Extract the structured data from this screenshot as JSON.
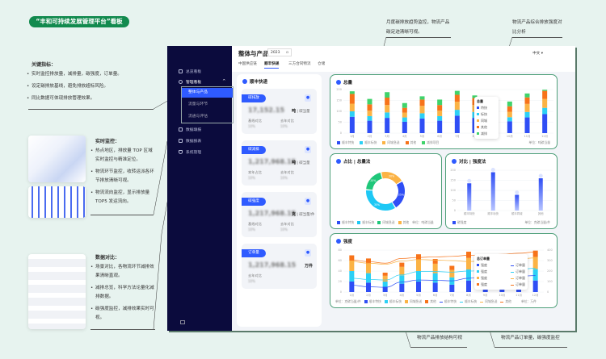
{
  "page_title": "“丰和可持续发展管理平台”看板",
  "notes": {
    "key": {
      "heading": "关键指标：",
      "items": [
        "实时监控排放量，减排量，碳强度，订单量。",
        "设定碳排放基线，避免排放超标风险。",
        "同比数据可体现排放管理效果。"
      ]
    },
    "realtime": {
      "heading": "实时监控：",
      "items": [
        "热点地区，排放量 TOP 区域实时监控与精准定位。",
        "物流环节监控，收转运派各环节排放清晰可视。",
        "物流流向监控，显示排放量 TOP5 发运流向。"
      ]
    },
    "compare": {
      "heading": "数据对比：",
      "items": [
        "场景对比，各物流环节减排效果清晰直观。",
        "减排总览，科学方法论量化减排数据。",
        "碳强度监控，减排效果实时可视。"
      ]
    },
    "top1": "月度碳排放趋势监控，物流产品碳足迹清晰可视。",
    "top2": "物流产品综合排放强度对比分析",
    "bottom1": "物流产品排放结构可视",
    "bottom2": "物流产品订单量，碳强度监控"
  },
  "sidebar": {
    "items": [
      "总览看板",
      "管理看板",
      "数据填报",
      "数据报表",
      "系统管理"
    ],
    "sub_items": [
      "整体与产品",
      "流量与环节",
      "流通与评估"
    ]
  },
  "header": {
    "title": "整体与产品",
    "year": "2023",
    "lang": "中文",
    "tabs": [
      "中国供应链",
      "顺丰快递",
      "三方合同物流",
      "仓储"
    ]
  },
  "kpi_panel": {
    "title": "顺丰快递",
    "cards": [
      {
        "tag": "碳排放",
        "value": "17,152.15",
        "unit": "吨",
        "unit_sub": "碳当量",
        "labels": [
          "基线对比",
          "去年对比"
        ],
        "pcts": [
          "10%",
          "10%"
        ]
      },
      {
        "tag": "碳减排",
        "value": "1,217,968.15",
        "unit": "吨",
        "unit_sub": "碳当量",
        "labels": [
          "本年占比",
          "去年对比"
        ],
        "pcts": [
          "10%",
          "10%"
        ]
      },
      {
        "tag": "碳强度",
        "value": "1,217,968.15",
        "unit": "克",
        "unit_sub": "碳当量/件",
        "labels": [
          "基线对比",
          "去年对比"
        ],
        "pcts": [
          "10%",
          "10%"
        ]
      },
      {
        "tag": "订单量",
        "value": "1,217,968.15",
        "unit": "万件",
        "unit_sub": "",
        "labels": [
          "去年对比"
        ],
        "pcts": [
          "10%"
        ]
      }
    ]
  },
  "colors": {
    "blue": "#2f4ef5",
    "cyan": "#2cd0f5",
    "yellow": "#fbb345",
    "orange": "#f7731a",
    "green": "#3fd36b",
    "accent": "#2f5bff",
    "sidebar": "#0b0b3d",
    "brand": "#128a4e"
  },
  "chart_data": [
    {
      "type": "bar",
      "stacked": true,
      "title": "总量",
      "categories": [
        "1月",
        "2月",
        "3月",
        "4月",
        "5月",
        "6月",
        "7月",
        "8月",
        "9月",
        "10月",
        "11月",
        "12月"
      ],
      "ylim": [
        0,
        200
      ],
      "yticks": [
        0,
        50,
        100,
        150,
        200
      ],
      "unit": "单位：吨碳当量",
      "legend": "bottom-left",
      "series": [
        {
          "name": "顺丰特快",
          "color": "#2f4ef5",
          "values": [
            75,
            57,
            70,
            52,
            67,
            57,
            80,
            70,
            60,
            54,
            72,
            87
          ]
        },
        {
          "name": "顺丰标快",
          "color": "#2cd0f5",
          "values": [
            25,
            21,
            25,
            20,
            24,
            21,
            27,
            27,
            22,
            19,
            25,
            29
          ]
        },
        {
          "name": "同城急送",
          "color": "#fbb345",
          "values": [
            35,
            25,
            34,
            22,
            34,
            25,
            37,
            32,
            28,
            25,
            37,
            41
          ]
        },
        {
          "name": "其他",
          "color": "#f7731a",
          "values": [
            45,
            29,
            34,
            22,
            29,
            26,
            32,
            32,
            28,
            25,
            30,
            37
          ]
        },
        {
          "name": "减排项目",
          "color": "#3fd36b",
          "values": [
            12,
            25,
            25,
            22,
            15,
            25,
            18,
            12,
            18,
            22,
            18,
            5
          ]
        }
      ]
    },
    {
      "type": "pie",
      "donut": true,
      "title": "占比 | 总量法",
      "unit": "单位：吨碳当量",
      "labels": [
        "顺丰特快",
        "顺丰标快",
        "同城急送",
        "其他"
      ],
      "values": [
        25,
        35,
        20,
        20
      ],
      "colors": [
        "#2f4ef5",
        "#1ec8f5",
        "#1fc77a",
        "#fbb345"
      ]
    },
    {
      "type": "bar",
      "title": "对比 | 强度法",
      "categories": [
        "顺丰特快",
        "顺丰标快",
        "顺丰同城",
        "其他"
      ],
      "values": [
        135,
        190,
        78,
        160
      ],
      "ylim": [
        0,
        200
      ],
      "yticks": [
        0,
        50,
        100,
        150,
        200
      ],
      "series_name": "碳强度",
      "unit": "单位：克碳当量/件"
    },
    {
      "type": "bar",
      "stacked": true,
      "title": "强度",
      "categories": [
        "1月",
        "2月",
        "3月",
        "4月",
        "5月",
        "6月",
        "7月",
        "8月",
        "9月",
        "10月",
        "11月",
        "12月"
      ],
      "ylim": [
        0,
        80
      ],
      "yticks": [
        0,
        20,
        40,
        60,
        80
      ],
      "y2lim": [
        0,
        400
      ],
      "y2ticks": [
        0,
        100,
        200,
        300,
        400
      ],
      "unit_left": "单位：克碳当量/件",
      "unit_right": "单位：万件",
      "series": [
        {
          "name": "顺丰特快",
          "color": "#2f4ef5",
          "values": [
            20,
            18,
            10,
            16,
            20,
            18,
            14,
            22,
            20,
            18,
            20,
            22
          ]
        },
        {
          "name": "顺丰标快",
          "color": "#2cd0f5",
          "values": [
            20,
            18,
            10,
            16,
            20,
            18,
            14,
            21,
            20,
            18,
            20,
            22
          ]
        },
        {
          "name": "同城急送",
          "color": "#fbb345",
          "values": [
            20,
            18,
            11,
            16,
            22,
            18,
            14,
            22,
            20,
            18,
            20,
            23
          ]
        },
        {
          "name": "其他",
          "color": "#f7731a",
          "values": [
            10,
            10,
            6,
            8,
            10,
            9,
            8,
            12,
            10,
            8,
            10,
            12
          ]
        }
      ],
      "lines": [
        {
          "name": "顺丰特快",
          "color": "#2f4ef5",
          "values": [
            65,
            50,
            45,
            95,
            115,
            112,
            107,
            132,
            140,
            145,
            150,
            157
          ]
        },
        {
          "name": "顺丰标快",
          "color": "#2cd0f5",
          "values": [
            132,
            120,
            115,
            165,
            195,
            195,
            190,
            200,
            205,
            210,
            215,
            227
          ]
        },
        {
          "name": "同城急送",
          "color": "#fbb345",
          "values": [
            290,
            275,
            265,
            295,
            310,
            305,
            300,
            290,
            300,
            310,
            315,
            325
          ]
        },
        {
          "name": "其他",
          "color": "#f7731a",
          "values": [
            305,
            290,
            275,
            320,
            330,
            335,
            340,
            350,
            355,
            360,
            370,
            382
          ]
        }
      ]
    }
  ],
  "tooltips": {
    "total": {
      "title": "总量",
      "rows": [
        "特快",
        "标快",
        "同城",
        "其他",
        "减排"
      ]
    },
    "orders": {
      "title": "总订单量",
      "left": "强度",
      "right": "订单量"
    }
  }
}
